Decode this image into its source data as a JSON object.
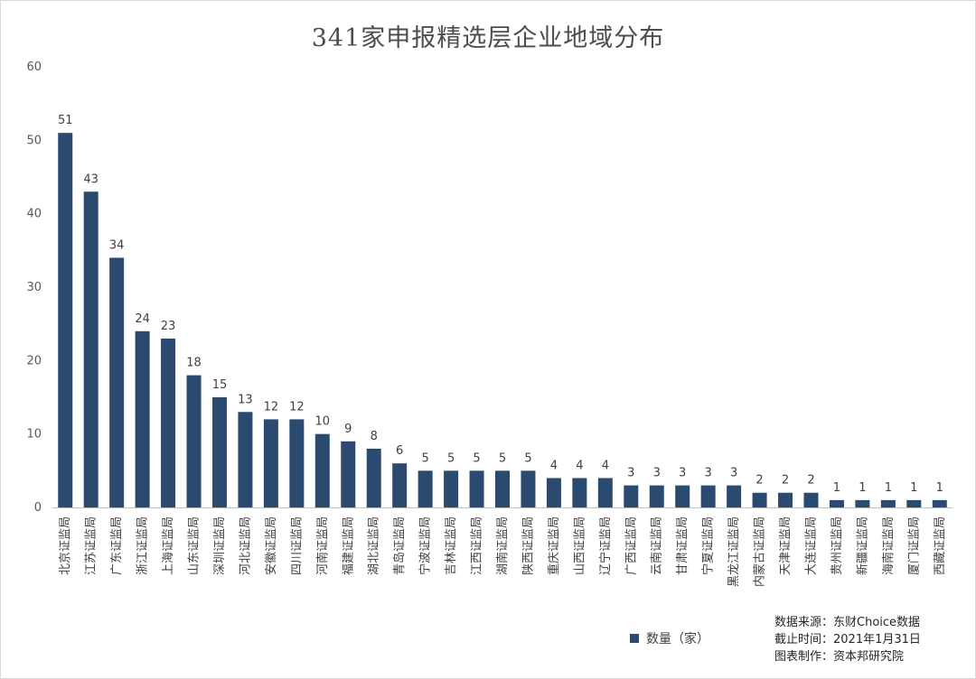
{
  "title": "341家申报精选层企业地域分布",
  "legend": {
    "label": "数量（家）"
  },
  "notes": {
    "source": "数据来源：东财Choice数据",
    "cutoff": "截止时间：2021年1月31日",
    "maker": "图表制作：资本邦研究院"
  },
  "colors": {
    "bar": "#2b4a6f",
    "axis": "#bfbfbf"
  },
  "chart_data": {
    "type": "bar",
    "title": "341家申报精选层企业地域分布",
    "xlabel": "",
    "ylabel": "",
    "ylim": [
      0,
      60
    ],
    "yticks": [
      0,
      10,
      20,
      30,
      40,
      50,
      60
    ],
    "grid": false,
    "legend_position": "bottom",
    "categories": [
      "北京证监局",
      "江苏证监局",
      "广东证监局",
      "浙江证监局",
      "上海证监局",
      "山东证监局",
      "深圳证监局",
      "河北证监局",
      "安徽证监局",
      "四川证监局",
      "河南证监局",
      "福建证监局",
      "湖北证监局",
      "青岛证监局",
      "宁波证监局",
      "吉林证监局",
      "江西证监局",
      "湖南证监局",
      "陕西证监局",
      "重庆证监局",
      "山西证监局",
      "辽宁证监局",
      "广西证监局",
      "云南证监局",
      "甘肃证监局",
      "宁夏证监局",
      "黑龙江证监局",
      "内蒙古证监局",
      "天津证监局",
      "大连证监局",
      "贵州证监局",
      "新疆证监局",
      "海南证监局",
      "厦门证监局",
      "西藏证监局"
    ],
    "series": [
      {
        "name": "数量（家）",
        "values": [
          51,
          43,
          34,
          24,
          23,
          18,
          15,
          13,
          12,
          12,
          10,
          9,
          8,
          6,
          5,
          5,
          5,
          5,
          5,
          4,
          4,
          4,
          3,
          3,
          3,
          3,
          3,
          2,
          2,
          2,
          1,
          1,
          1,
          1,
          1
        ]
      }
    ]
  }
}
